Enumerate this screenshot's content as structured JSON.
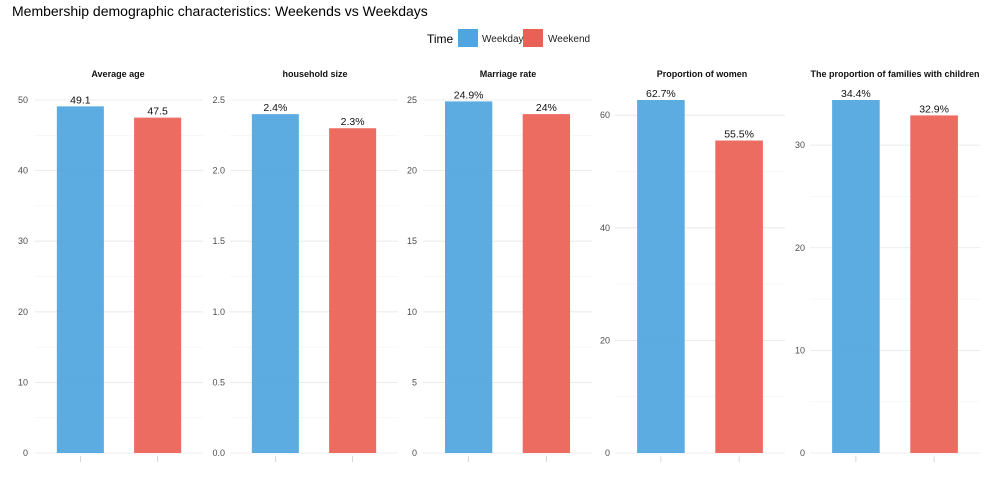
{
  "title": "Membership demographic characteristics: Weekends vs Weekdays",
  "legend": {
    "title": "Time",
    "items": [
      {
        "label": "Weekday",
        "color": "#4ea5e0"
      },
      {
        "label": "Weekend",
        "color": "#ea6054"
      }
    ]
  },
  "chart_data": [
    {
      "type": "bar",
      "title": "Average age",
      "categories": [
        "Weekday",
        "Weekend"
      ],
      "values": [
        49.1,
        47.5
      ],
      "labels": [
        "49.1",
        "47.5"
      ],
      "ylim": [
        0,
        50
      ],
      "yticks": [
        0,
        10,
        20,
        30,
        40,
        50
      ],
      "ytick_labels": [
        "0",
        "10",
        "20",
        "30",
        "40",
        "50"
      ]
    },
    {
      "type": "bar",
      "title": "household size",
      "categories": [
        "Weekday",
        "Weekend"
      ],
      "values": [
        2.4,
        2.3
      ],
      "labels": [
        "2.4%",
        "2.3%"
      ],
      "ylim": [
        0,
        2.5
      ],
      "yticks": [
        0,
        0.5,
        1.0,
        1.5,
        2.0,
        2.5
      ],
      "ytick_labels": [
        "0.0",
        "0.5",
        "1.0",
        "1.5",
        "2.0",
        "2.5"
      ]
    },
    {
      "type": "bar",
      "title": "Marriage rate",
      "categories": [
        "Weekday",
        "Weekend"
      ],
      "values": [
        24.9,
        24
      ],
      "labels": [
        "24.9%",
        "24%"
      ],
      "ylim": [
        0,
        25
      ],
      "yticks": [
        0,
        5,
        10,
        15,
        20,
        25
      ],
      "ytick_labels": [
        "0",
        "5",
        "10",
        "15",
        "20",
        "25"
      ]
    },
    {
      "type": "bar",
      "title": "Proportion of women",
      "categories": [
        "Weekday",
        "Weekend"
      ],
      "values": [
        62.7,
        55.5
      ],
      "labels": [
        "62.7%",
        "55.5%"
      ],
      "ylim": [
        0,
        62.7
      ],
      "yticks": [
        0,
        20,
        40,
        60
      ],
      "ytick_labels": [
        "0",
        "20",
        "40",
        "60"
      ]
    },
    {
      "type": "bar",
      "title": "The proportion of families with children",
      "categories": [
        "Weekday",
        "Weekend"
      ],
      "values": [
        34.4,
        32.9
      ],
      "labels": [
        "34.4%",
        "32.9%"
      ],
      "ylim": [
        0,
        34.4
      ],
      "yticks": [
        0,
        10,
        20,
        30
      ],
      "ytick_labels": [
        "0",
        "10",
        "20",
        "30"
      ]
    }
  ]
}
